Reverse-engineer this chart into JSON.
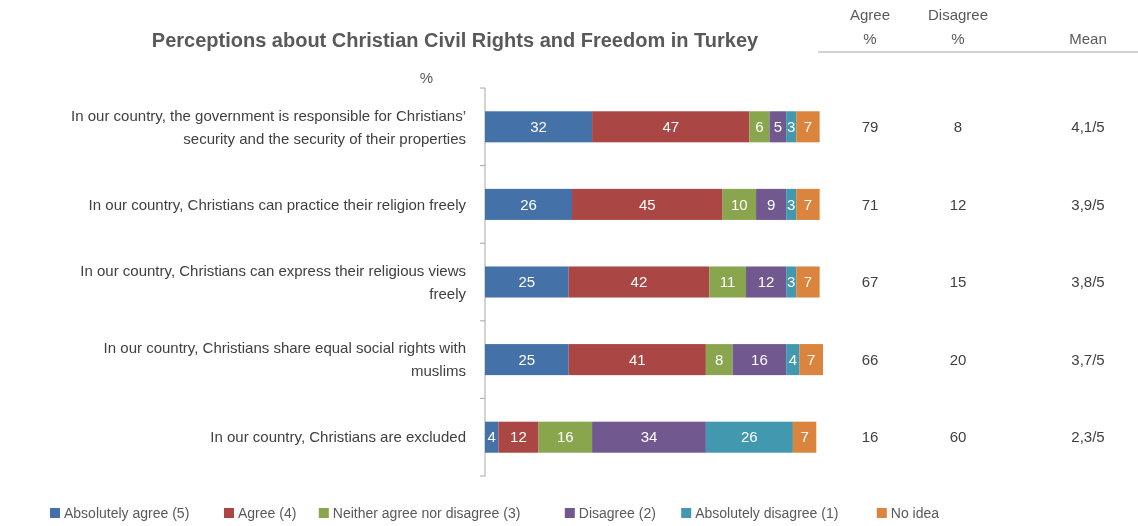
{
  "chart_data": [
    {
      "type": "bar",
      "orientation": "horizontal",
      "stacked": true,
      "title": "Perceptions about Christian Civil Rights and Freedom in Turkey",
      "xlabel": "%",
      "categories": [
        "In our country, the government is responsible for Christians’ security and the security of their properties",
        "In our country, Christians can practice their religion freely",
        "In our country, Christians can express their religious views freely",
        "In our country, Christians share equal social rights with muslims",
        "In our country, Christians are excluded"
      ],
      "series": [
        {
          "name": "Absolutely agree (5)",
          "color": "#4472a8",
          "values": [
            32,
            26,
            25,
            25,
            4
          ]
        },
        {
          "name": "Agree (4)",
          "color": "#aa4644",
          "values": [
            47,
            45,
            42,
            41,
            12
          ]
        },
        {
          "name": "Neither agree nor disagree (3)",
          "color": "#89a64e",
          "values": [
            6,
            10,
            11,
            8,
            16
          ]
        },
        {
          "name": "Disagree (2)",
          "color": "#71588f",
          "values": [
            5,
            9,
            12,
            16,
            34
          ]
        },
        {
          "name": "Absolutely disagree (1)",
          "color": "#4198af",
          "values": [
            3,
            3,
            3,
            4,
            26
          ]
        },
        {
          "name": "No idea",
          "color": "#db843d",
          "values": [
            7,
            7,
            7,
            7,
            7
          ]
        }
      ],
      "data_labels": true,
      "legend": "bottom"
    },
    {
      "type": "other",
      "categories": [
        "Agree %",
        "Disagree %",
        "Mean"
      ],
      "cell_labels": [
        [
          "79",
          "8",
          "4,1/5"
        ],
        [
          "71",
          "12",
          "3,9/5"
        ],
        [
          "67",
          "15",
          "3,8/5"
        ],
        [
          "66",
          "20",
          "3,7/5"
        ],
        [
          "16",
          "60",
          "2,3/5"
        ]
      ]
    }
  ]
}
